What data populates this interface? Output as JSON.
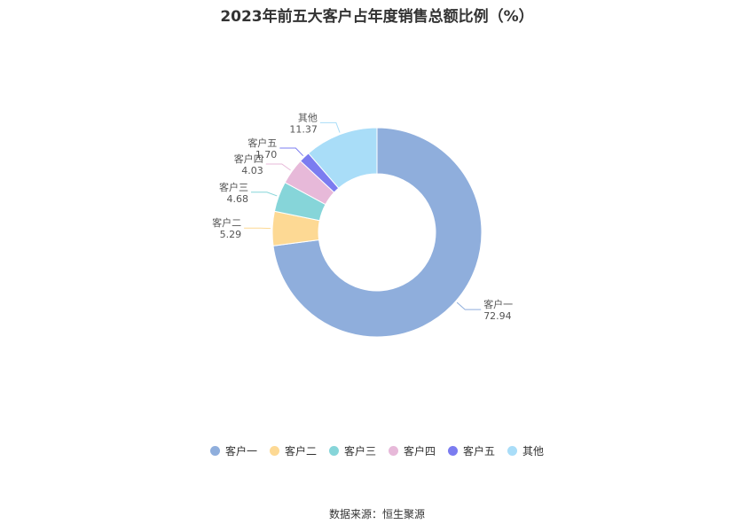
{
  "title": "2023年前五大客户占年度销售总额比例（%）",
  "source": "数据来源：恒生聚源",
  "chart_data": {
    "type": "pie",
    "variant": "donut",
    "title": "2023年前五大客户占年度销售总额比例（%）",
    "legend_position": "bottom",
    "slices": [
      {
        "name": "客户一",
        "value": 72.94,
        "label": "72.94",
        "color": "#8FAEDC"
      },
      {
        "name": "客户二",
        "value": 5.29,
        "label": "5.29",
        "color": "#FDD994"
      },
      {
        "name": "客户三",
        "value": 4.68,
        "label": "4.68",
        "color": "#86D5D9"
      },
      {
        "name": "客户四",
        "value": 4.03,
        "label": "4.03",
        "color": "#E7B9D9"
      },
      {
        "name": "客户五",
        "value": 1.7,
        "label": "1.70",
        "color": "#7B7CF0"
      },
      {
        "name": "其他",
        "value": 11.37,
        "label": "11.37",
        "color": "#A9DDF8"
      }
    ]
  }
}
